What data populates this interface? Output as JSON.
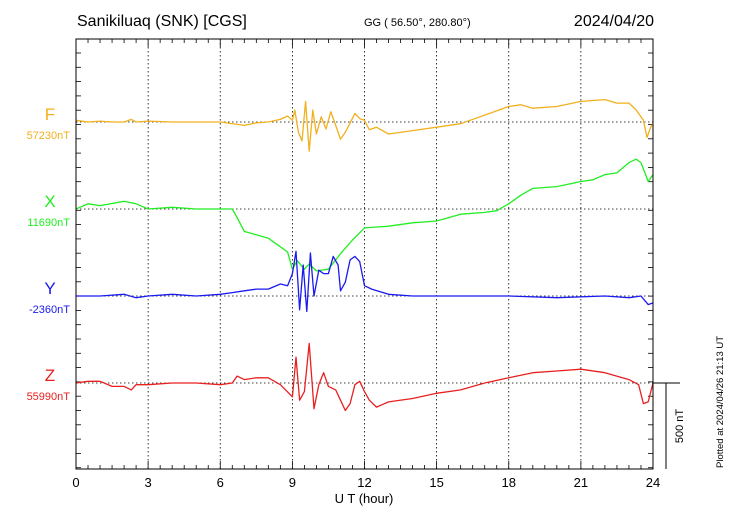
{
  "header": {
    "station": "Sanikiluaq (SNK)  [CGS]",
    "coords": "GG ( 56.50°, 280.80°)",
    "date": "2024/04/20"
  },
  "footer": {
    "plotted": "Plotted at 2024/04/26 21:13 UT"
  },
  "chart_data": {
    "type": "line",
    "xlabel": "U T (hour)",
    "xlim": [
      0,
      24
    ],
    "x_ticks": [
      "0",
      "3",
      "6",
      "9",
      "12",
      "15",
      "18",
      "21",
      "24"
    ],
    "scale_bar": {
      "label": "500 nT",
      "value_nT": 500
    },
    "series": [
      {
        "name": "F",
        "baseline": "57230nT",
        "baseline_nT": 57230,
        "color": "#f2b01e",
        "points": [
          [
            0,
            10
          ],
          [
            0.5,
            0
          ],
          [
            1,
            5
          ],
          [
            1.5,
            0
          ],
          [
            2,
            0
          ],
          [
            2.3,
            15
          ],
          [
            2.5,
            0
          ],
          [
            3,
            5
          ],
          [
            4,
            0
          ],
          [
            5,
            0
          ],
          [
            6,
            0
          ],
          [
            7,
            -20
          ],
          [
            7.5,
            -5
          ],
          [
            8,
            0
          ],
          [
            8.5,
            15
          ],
          [
            8.8,
            35
          ],
          [
            9,
            10
          ],
          [
            9.1,
            70
          ],
          [
            9.25,
            -60
          ],
          [
            9.4,
            -110
          ],
          [
            9.55,
            120
          ],
          [
            9.7,
            -170
          ],
          [
            9.85,
            70
          ],
          [
            10,
            -70
          ],
          [
            10.2,
            30
          ],
          [
            10.4,
            -40
          ],
          [
            10.6,
            60
          ],
          [
            10.8,
            -20
          ],
          [
            11,
            -100
          ],
          [
            11.2,
            -60
          ],
          [
            11.4,
            -5
          ],
          [
            11.6,
            50
          ],
          [
            11.8,
            20
          ],
          [
            12,
            10
          ],
          [
            12.2,
            -45
          ],
          [
            12.5,
            -30
          ],
          [
            13,
            -70
          ],
          [
            14,
            -50
          ],
          [
            15,
            -30
          ],
          [
            16,
            -10
          ],
          [
            17,
            40
          ],
          [
            18,
            90
          ],
          [
            18.5,
            100
          ],
          [
            19,
            80
          ],
          [
            20,
            90
          ],
          [
            21,
            120
          ],
          [
            22,
            130
          ],
          [
            22.5,
            110
          ],
          [
            23,
            110
          ],
          [
            23.3,
            70
          ],
          [
            23.6,
            10
          ],
          [
            23.75,
            -90
          ],
          [
            23.9,
            -30
          ],
          [
            24,
            -10
          ]
        ]
      },
      {
        "name": "X",
        "baseline": "11690nT",
        "baseline_nT": 11690,
        "color": "#22ee22",
        "points": [
          [
            0,
            0
          ],
          [
            0.5,
            30
          ],
          [
            1,
            20
          ],
          [
            2,
            45
          ],
          [
            2.5,
            30
          ],
          [
            3,
            0
          ],
          [
            4,
            10
          ],
          [
            5,
            0
          ],
          [
            6.5,
            0
          ],
          [
            6.7,
            -50
          ],
          [
            7,
            -130
          ],
          [
            7.5,
            -150
          ],
          [
            8,
            -170
          ],
          [
            8.5,
            -220
          ],
          [
            8.8,
            -250
          ],
          [
            9,
            -350
          ],
          [
            9.2,
            -300
          ],
          [
            9.5,
            -350
          ],
          [
            9.7,
            -320
          ],
          [
            10,
            -360
          ],
          [
            10.5,
            -350
          ],
          [
            11,
            -260
          ],
          [
            11.5,
            -180
          ],
          [
            12,
            -110
          ],
          [
            13,
            -100
          ],
          [
            14,
            -80
          ],
          [
            15,
            -70
          ],
          [
            16,
            -30
          ],
          [
            17,
            -20
          ],
          [
            17.5,
            -10
          ],
          [
            18,
            30
          ],
          [
            18.5,
            80
          ],
          [
            19,
            120
          ],
          [
            20,
            130
          ],
          [
            21,
            160
          ],
          [
            21.5,
            170
          ],
          [
            22,
            200
          ],
          [
            22.5,
            210
          ],
          [
            23,
            270
          ],
          [
            23.3,
            290
          ],
          [
            23.5,
            270
          ],
          [
            23.8,
            160
          ],
          [
            24,
            200
          ]
        ]
      },
      {
        "name": "Y",
        "baseline": "-2360nT",
        "baseline_nT": -2360,
        "color": "#1a1af0",
        "points": [
          [
            0,
            0
          ],
          [
            1,
            0
          ],
          [
            2,
            10
          ],
          [
            2.5,
            -10
          ],
          [
            3,
            0
          ],
          [
            4,
            10
          ],
          [
            5,
            0
          ],
          [
            6,
            10
          ],
          [
            6.5,
            20
          ],
          [
            7,
            30
          ],
          [
            7.5,
            40
          ],
          [
            8,
            40
          ],
          [
            8.5,
            70
          ],
          [
            8.8,
            60
          ],
          [
            9,
            130
          ],
          [
            9.15,
            260
          ],
          [
            9.3,
            -80
          ],
          [
            9.45,
            180
          ],
          [
            9.6,
            -90
          ],
          [
            9.75,
            250
          ],
          [
            9.9,
            0
          ],
          [
            10.1,
            150
          ],
          [
            10.3,
            130
          ],
          [
            10.5,
            130
          ],
          [
            10.7,
            230
          ],
          [
            10.9,
            180
          ],
          [
            11,
            30
          ],
          [
            11.2,
            80
          ],
          [
            11.4,
            210
          ],
          [
            11.6,
            230
          ],
          [
            11.8,
            200
          ],
          [
            12,
            60
          ],
          [
            12.3,
            40
          ],
          [
            13,
            10
          ],
          [
            14,
            0
          ],
          [
            16,
            0
          ],
          [
            18,
            0
          ],
          [
            20,
            -10
          ],
          [
            22,
            0
          ],
          [
            23,
            -10
          ],
          [
            23.5,
            0
          ],
          [
            23.8,
            -50
          ],
          [
            24,
            -40
          ]
        ]
      },
      {
        "name": "Z",
        "baseline": "55990nT",
        "baseline_nT": 55990,
        "color": "#e82020",
        "points": [
          [
            0,
            0
          ],
          [
            0.5,
            10
          ],
          [
            1,
            10
          ],
          [
            1.5,
            -20
          ],
          [
            2,
            -20
          ],
          [
            2.3,
            -40
          ],
          [
            2.5,
            -10
          ],
          [
            3,
            -10
          ],
          [
            4,
            0
          ],
          [
            5,
            0
          ],
          [
            6,
            -10
          ],
          [
            6.5,
            0
          ],
          [
            6.7,
            40
          ],
          [
            7,
            20
          ],
          [
            7.5,
            30
          ],
          [
            8,
            30
          ],
          [
            8.5,
            -10
          ],
          [
            9,
            -80
          ],
          [
            9.15,
            150
          ],
          [
            9.3,
            -100
          ],
          [
            9.5,
            -50
          ],
          [
            9.7,
            230
          ],
          [
            9.9,
            -150
          ],
          [
            10.1,
            -10
          ],
          [
            10.3,
            60
          ],
          [
            10.5,
            -20
          ],
          [
            10.8,
            -40
          ],
          [
            11,
            -100
          ],
          [
            11.2,
            -160
          ],
          [
            11.4,
            -120
          ],
          [
            11.6,
            -10
          ],
          [
            11.8,
            10
          ],
          [
            12,
            -50
          ],
          [
            12.2,
            -100
          ],
          [
            12.5,
            -140
          ],
          [
            13,
            -110
          ],
          [
            14,
            -90
          ],
          [
            15,
            -60
          ],
          [
            16,
            -40
          ],
          [
            17,
            0
          ],
          [
            18,
            30
          ],
          [
            19,
            60
          ],
          [
            20,
            70
          ],
          [
            21,
            80
          ],
          [
            22,
            60
          ],
          [
            23,
            20
          ],
          [
            23.4,
            -10
          ],
          [
            23.6,
            -120
          ],
          [
            23.8,
            -110
          ],
          [
            24,
            0
          ]
        ]
      }
    ]
  }
}
